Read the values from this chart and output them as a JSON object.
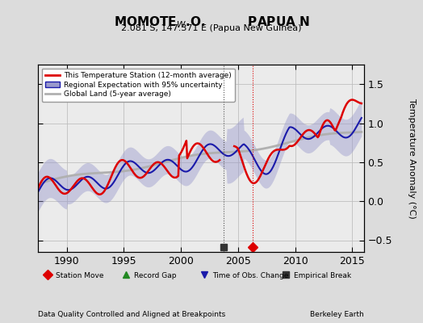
{
  "title": "MOMOTE$_{W}$.O.          PAPUA N",
  "subtitle": "2.081 S, 147.371 E (Papua New Guinea)",
  "ylabel": "Temperature Anomaly (°C)",
  "xlabel_bottom_left": "Data Quality Controlled and Aligned at Breakpoints",
  "xlabel_bottom_right": "Berkeley Earth",
  "xlim": [
    1987.5,
    2016.0
  ],
  "ylim": [
    -0.65,
    1.75
  ],
  "yticks": [
    -0.5,
    0.0,
    0.5,
    1.0,
    1.5
  ],
  "xticks": [
    1990,
    1995,
    2000,
    2005,
    2010,
    2015
  ],
  "bg_color": "#dcdcdc",
  "plot_bg_color": "#ebebeb",
  "red_color": "#dd0000",
  "blue_color": "#1a1aaa",
  "blue_fill_color": "#9999cc",
  "gray_color": "#b0b0b0",
  "station_move_year": 2006.3,
  "empirical_break_year": 2003.7,
  "legend_labels": [
    "This Temperature Station (12-month average)",
    "Regional Expectation with 95% uncertainty",
    "Global Land (5-year average)"
  ],
  "marker_items": [
    {
      "marker": "D",
      "color": "#dd0000",
      "label": "Station Move"
    },
    {
      "marker": "^",
      "color": "#228822",
      "label": "Record Gap"
    },
    {
      "marker": "v",
      "color": "#1a1aaa",
      "label": "Time of Obs. Change"
    },
    {
      "marker": "s",
      "color": "#333333",
      "label": "Empirical Break"
    }
  ]
}
